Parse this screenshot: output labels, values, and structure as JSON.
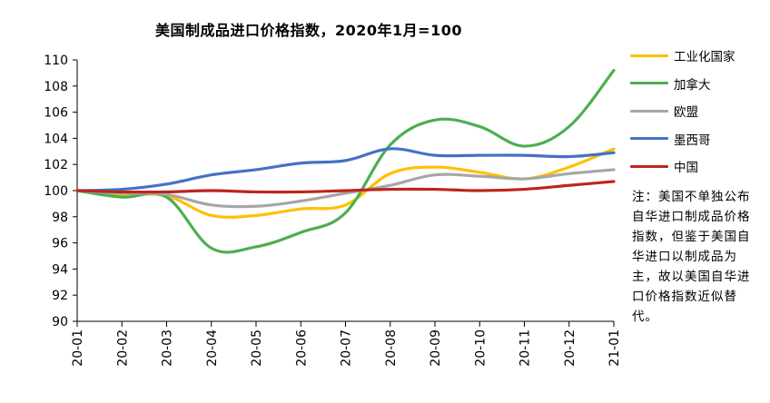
{
  "chart_data": {
    "type": "line",
    "title": "美国制成品进口价格指数，2020年1月=100",
    "xlabel": "",
    "ylabel": "",
    "categories": [
      "20-01",
      "20-02",
      "20-03",
      "20-04",
      "20-05",
      "20-06",
      "20-07",
      "20-08",
      "20-09",
      "20-10",
      "20-11",
      "20-12",
      "21-01"
    ],
    "ylim": [
      90,
      110
    ],
    "yticks": [
      90,
      92,
      94,
      96,
      98,
      100,
      102,
      104,
      106,
      108,
      110
    ],
    "grid": false,
    "legend_position": "right",
    "series": [
      {
        "name": "工业化国家",
        "color": "#ffc000",
        "values": [
          100.0,
          99.7,
          99.6,
          98.1,
          98.1,
          98.6,
          98.9,
          101.3,
          101.8,
          101.4,
          100.9,
          101.8,
          103.2
        ]
      },
      {
        "name": "加拿大",
        "color": "#4caf50",
        "values": [
          100.0,
          99.5,
          99.5,
          95.6,
          95.7,
          96.8,
          98.3,
          103.5,
          105.4,
          104.9,
          103.4,
          104.9,
          109.2
        ]
      },
      {
        "name": "欧盟",
        "color": "#a6a6a6",
        "values": [
          100.0,
          99.8,
          99.7,
          98.9,
          98.8,
          99.2,
          99.8,
          100.4,
          101.2,
          101.1,
          100.9,
          101.3,
          101.6
        ]
      },
      {
        "name": "墨西哥",
        "color": "#4472c4",
        "values": [
          100.0,
          100.1,
          100.5,
          101.2,
          101.6,
          102.1,
          102.3,
          103.2,
          102.7,
          102.7,
          102.7,
          102.6,
          102.9
        ]
      },
      {
        "name": "中国",
        "color": "#c0241c",
        "values": [
          100.0,
          99.9,
          99.9,
          100.0,
          99.9,
          99.9,
          100.0,
          100.1,
          100.1,
          100.0,
          100.1,
          100.4,
          100.7
        ]
      }
    ]
  },
  "note": "注：美国不单独公布自华进口制成品价格指数，但鉴于美国自华进口以制成品为主，故以美国自华进口价格指数近似替代。"
}
